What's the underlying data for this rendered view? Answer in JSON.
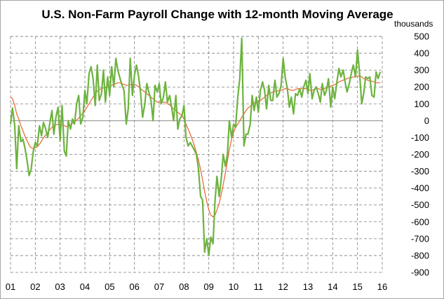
{
  "chart_data": {
    "type": "line",
    "title": "U.S. Non-Farm Payroll Change  with 12-month Moving Average",
    "unit_label": "thousands",
    "xlabel": "",
    "ylabel": "",
    "ylim": [
      -900,
      500
    ],
    "y_ticks": [
      500,
      400,
      300,
      200,
      100,
      0,
      -100,
      -200,
      -300,
      -400,
      -500,
      -600,
      -700,
      -800,
      -900
    ],
    "x_tick_labels": [
      "01",
      "02",
      "03",
      "04",
      "05",
      "06",
      "07",
      "08",
      "09",
      "10",
      "11",
      "12",
      "13",
      "14",
      "15",
      "16"
    ],
    "x_range_years": [
      2001,
      2016
    ],
    "grid": {
      "horizontal": "dashed",
      "vertical": "dashed"
    },
    "colors": {
      "monthly": "#6db33f",
      "moving_average": "#e8632b",
      "zero_line": "#888888",
      "grid": "#7f7f7f",
      "frame": "#a6a6a6"
    },
    "series": [
      {
        "role": "monthly",
        "x": [
          2001.0,
          2001.08,
          2001.17,
          2001.25,
          2001.33,
          2001.42,
          2001.5,
          2001.58,
          2001.67,
          2001.75,
          2001.83,
          2001.92,
          2002.0,
          2002.08,
          2002.17,
          2002.25,
          2002.33,
          2002.42,
          2002.5,
          2002.58,
          2002.67,
          2002.75,
          2002.83,
          2002.92,
          2003.0,
          2003.08,
          2003.17,
          2003.25,
          2003.33,
          2003.42,
          2003.5,
          2003.58,
          2003.67,
          2003.75,
          2003.83,
          2003.92,
          2004.0,
          2004.08,
          2004.17,
          2004.25,
          2004.33,
          2004.42,
          2004.5,
          2004.58,
          2004.67,
          2004.75,
          2004.83,
          2004.92,
          2005.0,
          2005.08,
          2005.17,
          2005.25,
          2005.33,
          2005.42,
          2005.5,
          2005.58,
          2005.67,
          2005.75,
          2005.83,
          2005.92,
          2006.0,
          2006.08,
          2006.17,
          2006.25,
          2006.33,
          2006.42,
          2006.5,
          2006.58,
          2006.67,
          2006.75,
          2006.83,
          2006.92,
          2007.0,
          2007.08,
          2007.17,
          2007.25,
          2007.33,
          2007.42,
          2007.5,
          2007.58,
          2007.67,
          2007.75,
          2007.83,
          2007.92,
          2008.0,
          2008.08,
          2008.17,
          2008.25,
          2008.33,
          2008.42,
          2008.5,
          2008.58,
          2008.67,
          2008.75,
          2008.83,
          2008.92,
          2009.0,
          2009.08,
          2009.17,
          2009.25,
          2009.33,
          2009.42,
          2009.5,
          2009.58,
          2009.67,
          2009.75,
          2009.83,
          2009.92,
          2010.0,
          2010.08,
          2010.17,
          2010.25,
          2010.33,
          2010.42,
          2010.5,
          2010.58,
          2010.67,
          2010.75,
          2010.83,
          2010.92,
          2011.0,
          2011.08,
          2011.17,
          2011.25,
          2011.33,
          2011.42,
          2011.5,
          2011.58,
          2011.67,
          2011.75,
          2011.83,
          2011.92,
          2012.0,
          2012.08,
          2012.17,
          2012.25,
          2012.33,
          2012.42,
          2012.5,
          2012.58,
          2012.67,
          2012.75,
          2012.83,
          2012.92,
          2013.0,
          2013.08,
          2013.17,
          2013.25,
          2013.33,
          2013.42,
          2013.5,
          2013.58,
          2013.67,
          2013.75,
          2013.83,
          2013.92,
          2014.0,
          2014.08,
          2014.17,
          2014.25,
          2014.33,
          2014.42,
          2014.5,
          2014.58,
          2014.67,
          2014.75,
          2014.83,
          2014.92,
          2015.0,
          2015.08,
          2015.17,
          2015.25,
          2015.33,
          2015.42,
          2015.5,
          2015.58,
          2015.67,
          2015.75,
          2015.83,
          2015.92
        ],
        "y": [
          -20,
          75,
          -30,
          -285,
          -30,
          -125,
          -110,
          -160,
          -240,
          -325,
          -290,
          -180,
          -130,
          -150,
          -30,
          -90,
          -10,
          -50,
          -100,
          -20,
          60,
          -80,
          20,
          80,
          -120,
          90,
          -180,
          -210,
          0,
          -50,
          10,
          -20,
          100,
          150,
          -20,
          20,
          180,
          100,
          280,
          320,
          250,
          90,
          330,
          120,
          160,
          300,
          110,
          260,
          150,
          320,
          200,
          370,
          300,
          250,
          210,
          180,
          -20,
          70,
          370,
          150,
          270,
          330,
          260,
          160,
          20,
          100,
          220,
          170,
          120,
          0,
          210,
          170,
          220,
          100,
          140,
          230,
          110,
          150,
          80,
          0,
          150,
          -50,
          10,
          30,
          90,
          -100,
          -150,
          -130,
          -150,
          -175,
          -200,
          -280,
          -450,
          -470,
          -780,
          -700,
          -800,
          -690,
          -730,
          -480,
          -330,
          -450,
          -350,
          -200,
          -270,
          -200,
          0,
          -100,
          -20,
          -40,
          140,
          250,
          490,
          -150,
          -80,
          -80,
          -20,
          150,
          60,
          140,
          50,
          180,
          230,
          180,
          70,
          210,
          120,
          120,
          240,
          140,
          160,
          210,
          370,
          260,
          190,
          80,
          140,
          40,
          160,
          150,
          190,
          140,
          200,
          240,
          160,
          280,
          130,
          180,
          200,
          160,
          110,
          220,
          150,
          180,
          250,
          80,
          200,
          130,
          230,
          310,
          260,
          300,
          230,
          170,
          220,
          280,
          330,
          260,
          420,
          290,
          100,
          160,
          260,
          250,
          260,
          150,
          140,
          290,
          250,
          290
        ]
      },
      {
        "role": "moving_average",
        "x": [
          2001.0,
          2001.08,
          2001.17,
          2001.25,
          2001.33,
          2001.42,
          2001.5,
          2001.58,
          2001.67,
          2001.75,
          2001.83,
          2001.92,
          2002.0,
          2002.08,
          2002.17,
          2002.25,
          2002.33,
          2002.42,
          2002.5,
          2002.58,
          2002.67,
          2002.75,
          2002.83,
          2002.92,
          2003.0,
          2003.08,
          2003.17,
          2003.25,
          2003.33,
          2003.42,
          2003.5,
          2003.58,
          2003.67,
          2003.75,
          2003.83,
          2003.92,
          2004.0,
          2004.08,
          2004.17,
          2004.25,
          2004.33,
          2004.42,
          2004.5,
          2004.58,
          2004.67,
          2004.75,
          2004.83,
          2004.92,
          2005.0,
          2005.08,
          2005.17,
          2005.25,
          2005.33,
          2005.42,
          2005.5,
          2005.58,
          2005.67,
          2005.75,
          2005.83,
          2005.92,
          2006.0,
          2006.08,
          2006.17,
          2006.25,
          2006.33,
          2006.42,
          2006.5,
          2006.58,
          2006.67,
          2006.75,
          2006.83,
          2006.92,
          2007.0,
          2007.08,
          2007.17,
          2007.25,
          2007.33,
          2007.42,
          2007.5,
          2007.58,
          2007.67,
          2007.75,
          2007.83,
          2007.92,
          2008.0,
          2008.08,
          2008.17,
          2008.25,
          2008.33,
          2008.42,
          2008.5,
          2008.58,
          2008.67,
          2008.75,
          2008.83,
          2008.92,
          2009.0,
          2009.08,
          2009.17,
          2009.25,
          2009.33,
          2009.42,
          2009.5,
          2009.58,
          2009.67,
          2009.75,
          2009.83,
          2009.92,
          2010.0,
          2010.08,
          2010.17,
          2010.25,
          2010.33,
          2010.42,
          2010.5,
          2010.58,
          2010.67,
          2010.75,
          2010.83,
          2010.92,
          2011.0,
          2011.08,
          2011.17,
          2011.25,
          2011.33,
          2011.42,
          2011.5,
          2011.58,
          2011.67,
          2011.75,
          2011.83,
          2011.92,
          2012.0,
          2012.08,
          2012.17,
          2012.25,
          2012.33,
          2012.42,
          2012.5,
          2012.58,
          2012.67,
          2012.75,
          2012.83,
          2012.92,
          2013.0,
          2013.08,
          2013.17,
          2013.25,
          2013.33,
          2013.42,
          2013.5,
          2013.58,
          2013.67,
          2013.75,
          2013.83,
          2013.92,
          2014.0,
          2014.08,
          2014.17,
          2014.25,
          2014.33,
          2014.42,
          2014.5,
          2014.58,
          2014.67,
          2014.75,
          2014.83,
          2014.92,
          2015.0,
          2015.08,
          2015.17,
          2015.25,
          2015.33,
          2015.42,
          2015.5,
          2015.58,
          2015.67,
          2015.75,
          2015.83,
          2015.92
        ],
        "y": [
          140,
          130,
          90,
          40,
          10,
          -30,
          -60,
          -90,
          -120,
          -145,
          -160,
          -165,
          -160,
          -155,
          -140,
          -120,
          -100,
          -85,
          -70,
          -55,
          -40,
          -30,
          -25,
          -20,
          -20,
          -25,
          -30,
          -35,
          -30,
          -25,
          -15,
          -5,
          5,
          15,
          30,
          45,
          60,
          80,
          100,
          120,
          140,
          160,
          175,
          185,
          190,
          195,
          195,
          200,
          205,
          210,
          215,
          220,
          225,
          225,
          220,
          215,
          210,
          210,
          215,
          215,
          215,
          210,
          200,
          190,
          180,
          170,
          160,
          150,
          140,
          130,
          120,
          110,
          110,
          110,
          110,
          110,
          100,
          95,
          80,
          70,
          60,
          50,
          40,
          30,
          10,
          -20,
          -50,
          -80,
          -110,
          -150,
          -190,
          -230,
          -290,
          -350,
          -420,
          -480,
          -530,
          -560,
          -570,
          -560,
          -530,
          -490,
          -440,
          -380,
          -310,
          -240,
          -170,
          -110,
          -70,
          -40,
          -20,
          0,
          20,
          40,
          60,
          75,
          85,
          95,
          105,
          110,
          115,
          120,
          130,
          140,
          150,
          160,
          165,
          170,
          175,
          175,
          180,
          180,
          185,
          190,
          190,
          185,
          180,
          180,
          185,
          190,
          190,
          190,
          190,
          190,
          185,
          180,
          180,
          185,
          190,
          190,
          185,
          185,
          190,
          195,
          200,
          205,
          210,
          215,
          220,
          230,
          235,
          240,
          245,
          250,
          255,
          255,
          260,
          260,
          265,
          265,
          260,
          250,
          245,
          240,
          235,
          235,
          230,
          225,
          225,
          225
        ]
      }
    ]
  }
}
